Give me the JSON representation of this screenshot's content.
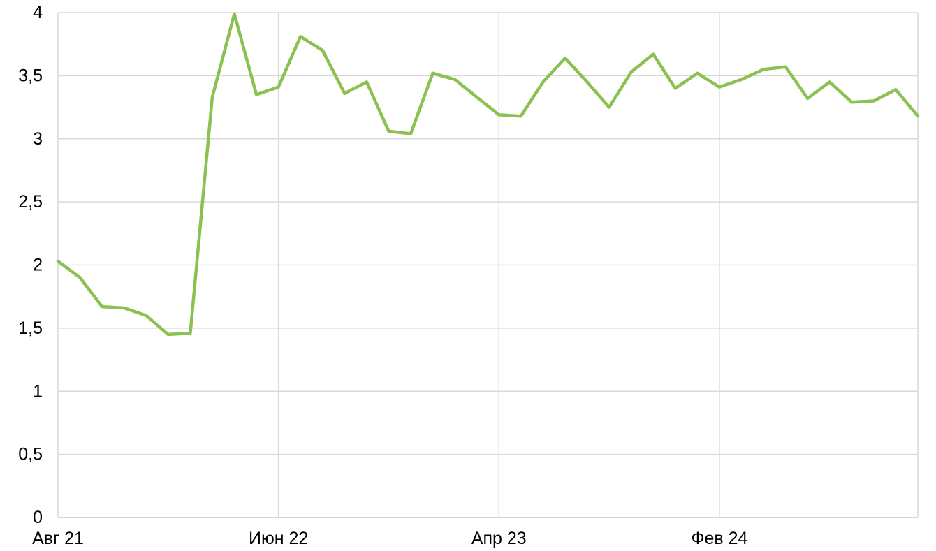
{
  "chart_data": {
    "type": "line",
    "title": "",
    "xlabel": "",
    "ylabel": "",
    "ylim": [
      0,
      4
    ],
    "grid": {
      "horizontal": true,
      "vertical": true,
      "color": "#d9d9d9",
      "axis_color": "#c6c6c6"
    },
    "legend": "none",
    "series_name": "",
    "series_color": "#8cc152",
    "text_color": "#000000",
    "y_ticks": {
      "values": [
        0,
        0.5,
        1,
        1.5,
        2,
        2.5,
        3,
        3.5,
        4
      ],
      "labels": [
        "0",
        "0,5",
        "1",
        "1,5",
        "2",
        "2,5",
        "3",
        "3,5",
        "4"
      ]
    },
    "x_ticks": [
      {
        "label": "Авг 21",
        "month_index": 0
      },
      {
        "label": "Июн 22",
        "month_index": 10
      },
      {
        "label": "Апр 23",
        "month_index": 20
      },
      {
        "label": "Фев 24",
        "month_index": 30
      }
    ],
    "points": [
      {
        "x": "Авг 21",
        "value": 2.03
      },
      {
        "x": "Сен 21",
        "value": 1.9
      },
      {
        "x": "Окт 21",
        "value": 1.67
      },
      {
        "x": "Ноя 21",
        "value": 1.66
      },
      {
        "x": "Дек 21",
        "value": 1.6
      },
      {
        "x": "Янв 22",
        "value": 1.45
      },
      {
        "x": "Фев 22",
        "value": 1.46
      },
      {
        "x": "Мар 22",
        "value": 3.33
      },
      {
        "x": "Апр 22",
        "value": 3.99
      },
      {
        "x": "Май 22",
        "value": 3.35
      },
      {
        "x": "Июн 22",
        "value": 3.41
      },
      {
        "x": "Июл 22",
        "value": 3.81
      },
      {
        "x": "Авг 22",
        "value": 3.7
      },
      {
        "x": "Сен 22",
        "value": 3.36
      },
      {
        "x": "Окт 22",
        "value": 3.45
      },
      {
        "x": "Ноя 22",
        "value": 3.06
      },
      {
        "x": "Дек 22",
        "value": 3.04
      },
      {
        "x": "Янв 23",
        "value": 3.52
      },
      {
        "x": "Фев 23",
        "value": 3.47
      },
      {
        "x": "Мар 23",
        "value": 3.33
      },
      {
        "x": "Апр 23",
        "value": 3.19
      },
      {
        "x": "Май 23",
        "value": 3.18
      },
      {
        "x": "Июн 23",
        "value": 3.45
      },
      {
        "x": "Июл 23",
        "value": 3.64
      },
      {
        "x": "Авг 23",
        "value": 3.45
      },
      {
        "x": "Сен 23",
        "value": 3.25
      },
      {
        "x": "Окт 23",
        "value": 3.53
      },
      {
        "x": "Ноя 23",
        "value": 3.67
      },
      {
        "x": "Дек 23",
        "value": 3.4
      },
      {
        "x": "Янв 24",
        "value": 3.52
      },
      {
        "x": "Фев 24",
        "value": 3.41
      },
      {
        "x": "Мар 24",
        "value": 3.47
      },
      {
        "x": "Апр 24",
        "value": 3.55
      },
      {
        "x": "Май 24",
        "value": 3.57
      },
      {
        "x": "Июн 24",
        "value": 3.32
      },
      {
        "x": "Июл 24",
        "value": 3.45
      },
      {
        "x": "Авг 24",
        "value": 3.29
      },
      {
        "x": "Сен 24",
        "value": 3.3
      },
      {
        "x": "Окт 24",
        "value": 3.39
      },
      {
        "x": "Ноя 24",
        "value": 3.18
      }
    ]
  }
}
